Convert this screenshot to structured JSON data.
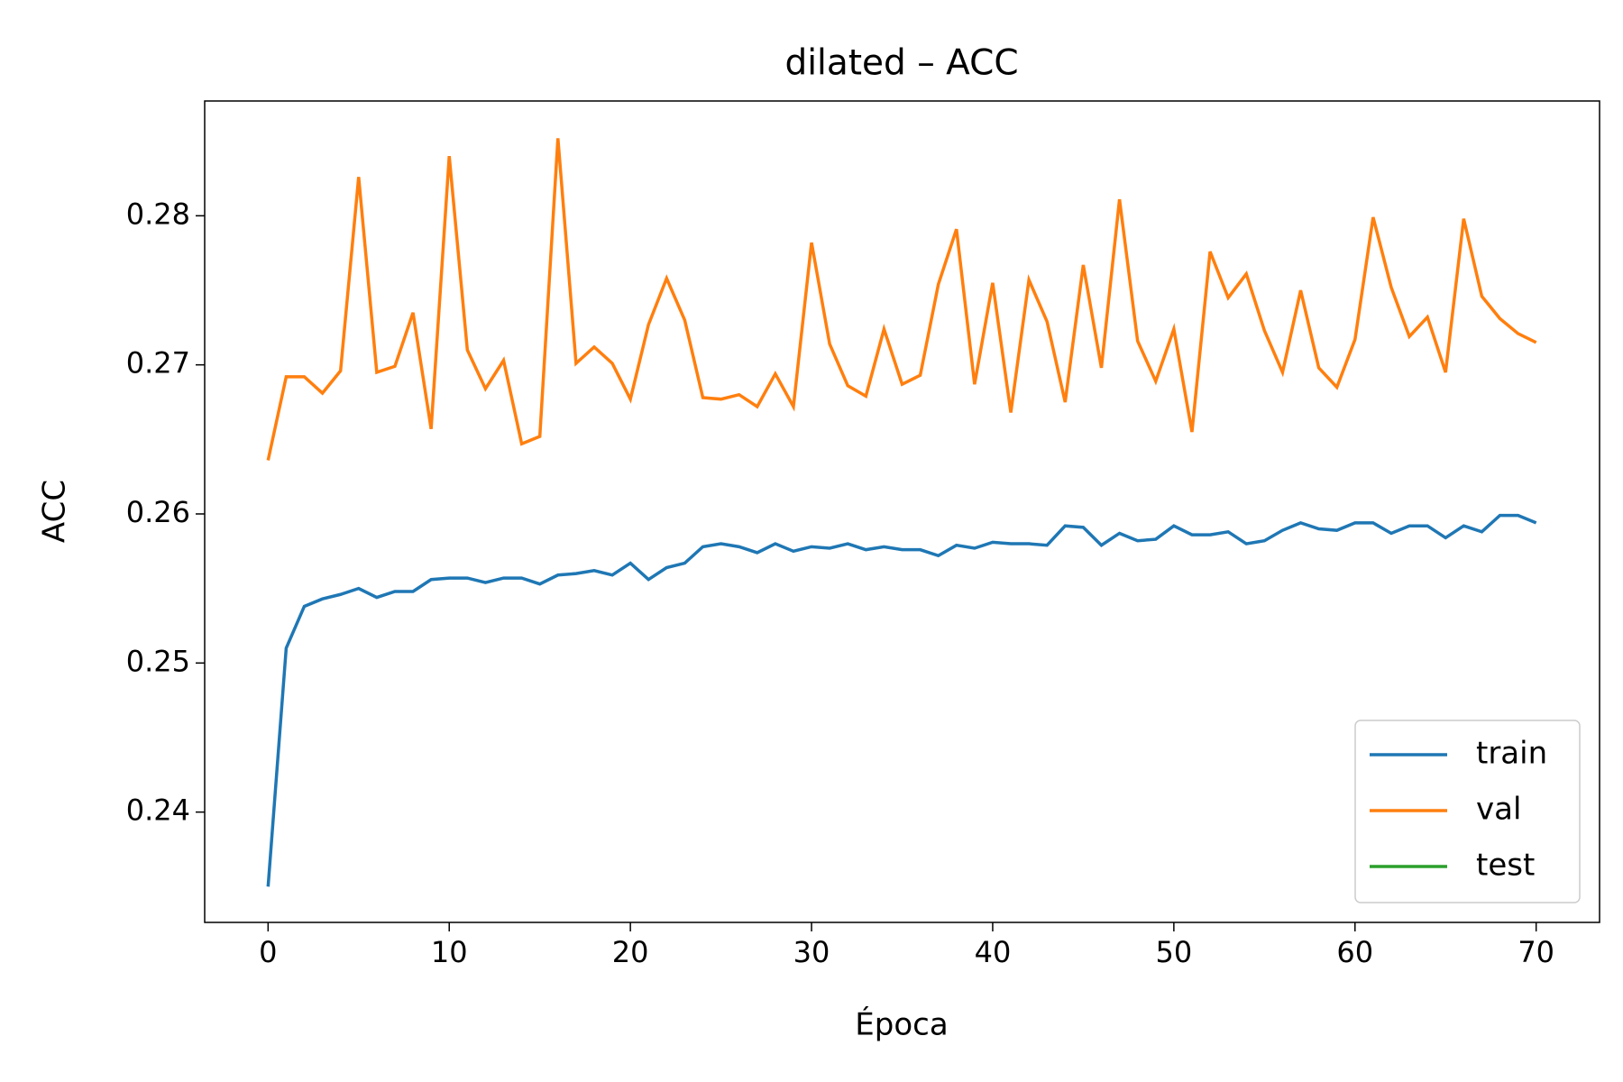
{
  "chart_data": {
    "type": "line",
    "title": "dilated – ACC",
    "xlabel": "Época",
    "ylabel": "ACC",
    "x": [
      0,
      1,
      2,
      3,
      4,
      5,
      6,
      7,
      8,
      9,
      10,
      11,
      12,
      13,
      14,
      15,
      16,
      17,
      18,
      19,
      20,
      21,
      22,
      23,
      24,
      25,
      26,
      27,
      28,
      29,
      30,
      31,
      32,
      33,
      34,
      35,
      36,
      37,
      38,
      39,
      40,
      41,
      42,
      43,
      44,
      45,
      46,
      47,
      48,
      49,
      50,
      51,
      52,
      53,
      54,
      55,
      56,
      57,
      58,
      59,
      60,
      61,
      62,
      63,
      64,
      65,
      66,
      67,
      68,
      69,
      70
    ],
    "series": [
      {
        "name": "train",
        "color": "#1f77b4",
        "values": [
          0.235,
          0.251,
          0.2538,
          0.2543,
          0.2546,
          0.255,
          0.2544,
          0.2548,
          0.2548,
          0.2556,
          0.2557,
          0.2557,
          0.2554,
          0.2557,
          0.2557,
          0.2553,
          0.2559,
          0.256,
          0.2562,
          0.2559,
          0.2567,
          0.2556,
          0.2564,
          0.2567,
          0.2578,
          0.258,
          0.2578,
          0.2574,
          0.258,
          0.2575,
          0.2578,
          0.2577,
          0.258,
          0.2576,
          0.2578,
          0.2576,
          0.2576,
          0.2572,
          0.2579,
          0.2577,
          0.2581,
          0.258,
          0.258,
          0.2579,
          0.2592,
          0.2591,
          0.2579,
          0.2587,
          0.2582,
          0.2583,
          0.2592,
          0.2586,
          0.2586,
          0.2588,
          0.258,
          0.2582,
          0.2589,
          0.2594,
          0.259,
          0.2589,
          0.2594,
          0.2594,
          0.2587,
          0.2592,
          0.2592,
          0.2584,
          0.2592,
          0.2588,
          0.2599,
          0.2599,
          0.2594
        ]
      },
      {
        "name": "val",
        "color": "#ff7f0e",
        "values": [
          0.2636,
          0.2692,
          0.2692,
          0.2681,
          0.2696,
          0.2826,
          0.2695,
          0.2699,
          0.2735,
          0.2657,
          0.284,
          0.271,
          0.2684,
          0.2703,
          0.2647,
          0.2652,
          0.2852,
          0.2701,
          0.2712,
          0.2701,
          0.2677,
          0.2727,
          0.2758,
          0.273,
          0.2678,
          0.2677,
          0.268,
          0.2672,
          0.2694,
          0.2672,
          0.2782,
          0.2714,
          0.2686,
          0.2679,
          0.2724,
          0.2687,
          0.2693,
          0.2754,
          0.2791,
          0.2687,
          0.2755,
          0.2668,
          0.2757,
          0.2729,
          0.2675,
          0.2767,
          0.2698,
          0.2811,
          0.2716,
          0.2689,
          0.2724,
          0.2655,
          0.2776,
          0.2745,
          0.2761,
          0.2723,
          0.2695,
          0.275,
          0.2698,
          0.2685,
          0.2717,
          0.2799,
          0.2752,
          0.2719,
          0.2732,
          0.2695,
          0.2798,
          0.2746,
          0.2731,
          0.2721,
          0.2715
        ]
      },
      {
        "name": "test",
        "color": "#2ca02c",
        "values": [
          null,
          null,
          null,
          null,
          null,
          null,
          null,
          null,
          null,
          null,
          null,
          null,
          null,
          null,
          null,
          null,
          null,
          null,
          null,
          null,
          null,
          null,
          null,
          null,
          null,
          null,
          null,
          null,
          null,
          null,
          null,
          null,
          null,
          null,
          null,
          null,
          null,
          null,
          null,
          null,
          null,
          null,
          null,
          null,
          null,
          null,
          null,
          null,
          null,
          null,
          null,
          null,
          null,
          null,
          null,
          null,
          null,
          null,
          null,
          null,
          null,
          null,
          null,
          null,
          null,
          null,
          null,
          null,
          null,
          null,
          null
        ]
      }
    ],
    "xlim": [
      -3.5,
      73.5
    ],
    "xticks": [
      0,
      10,
      20,
      30,
      40,
      50,
      60,
      70
    ],
    "ylim": [
      0.2326,
      0.2877
    ],
    "yticks": [
      0.24,
      0.25,
      0.26,
      0.27,
      0.28
    ],
    "legend": "lower right"
  }
}
